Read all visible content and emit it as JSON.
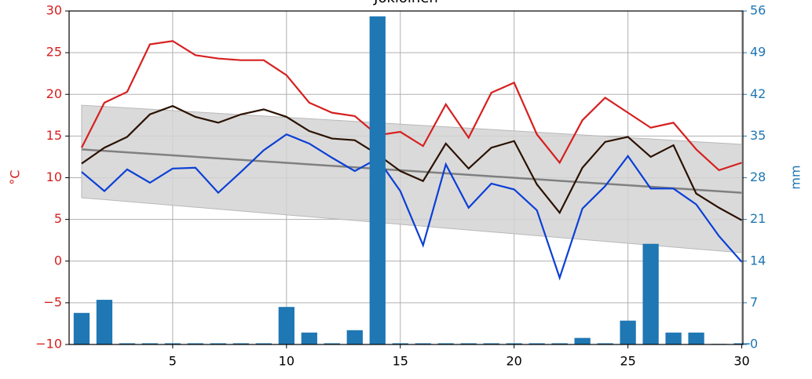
{
  "chart_data": {
    "type": "combo",
    "title": "Jokioinen",
    "y_label": "°C",
    "y2_label": "mm",
    "x": [
      1,
      2,
      3,
      4,
      5,
      6,
      7,
      8,
      9,
      10,
      11,
      12,
      13,
      14,
      15,
      16,
      17,
      18,
      19,
      20,
      21,
      22,
      23,
      24,
      25,
      26,
      27,
      28,
      29,
      30
    ],
    "xlim": [
      0.45,
      30.05
    ],
    "xticks": [
      5,
      10,
      15,
      20,
      25,
      30
    ],
    "ylim": [
      -10,
      30
    ],
    "yticks": [
      {
        "value": -10,
        "label": "−10"
      },
      {
        "value": -5,
        "label": "−5"
      },
      0,
      5,
      10,
      15,
      20,
      25,
      30
    ],
    "y2lim": [
      0,
      56
    ],
    "y2ticks": [
      0,
      7,
      14,
      21,
      28,
      35,
      42,
      49,
      56
    ],
    "y_color": "#d62020",
    "y2_color": "#1f77b4",
    "grid": true,
    "normal_band": {
      "x": [
        1,
        30
      ],
      "mean": [
        13.4,
        8.2
      ],
      "upper": [
        18.7,
        14.0
      ],
      "lower": [
        7.6,
        1.0
      ],
      "color": "#808080",
      "fill": "#d3d3d3"
    },
    "series": [
      {
        "type": "line",
        "color": "#d62020",
        "values": [
          13.6,
          19.0,
          20.3,
          26.0,
          26.4,
          24.7,
          24.3,
          24.1,
          24.1,
          22.3,
          19.0,
          17.8,
          17.4,
          15.1,
          15.5,
          13.8,
          18.8,
          14.8,
          20.2,
          21.4,
          15.2,
          11.8,
          16.9,
          19.6,
          17.8,
          16.0,
          16.6,
          13.4,
          10.9,
          11.8
        ]
      },
      {
        "type": "line",
        "color": "#2b1100",
        "values": [
          11.7,
          13.6,
          14.9,
          17.6,
          18.6,
          17.3,
          16.6,
          17.6,
          18.2,
          17.3,
          15.6,
          14.7,
          14.5,
          12.8,
          10.8,
          9.6,
          14.1,
          11.1,
          13.6,
          14.4,
          9.2,
          5.8,
          11.2,
          14.3,
          14.9,
          12.5,
          13.9,
          8.1,
          6.4,
          4.9
        ]
      },
      {
        "type": "line",
        "color": "#0b3fd6",
        "values": [
          10.7,
          8.4,
          11.0,
          9.4,
          11.1,
          11.2,
          8.2,
          10.7,
          13.3,
          15.2,
          14.1,
          12.4,
          10.8,
          12.3,
          8.4,
          1.9,
          11.6,
          6.4,
          9.3,
          8.6,
          6.1,
          -2.0,
          6.3,
          9.0,
          12.6,
          8.7,
          8.7,
          6.8,
          3.0,
          -0.1
        ]
      },
      {
        "type": "bar",
        "axis": "y2",
        "color": "#1f77b4",
        "values": [
          5.3,
          7.5,
          0.2,
          0.2,
          0.2,
          0.2,
          0.2,
          0.2,
          0.2,
          6.3,
          2.0,
          0.2,
          2.4,
          55.1,
          0.2,
          0.2,
          0.2,
          0.2,
          0.2,
          0.2,
          0.2,
          0.2,
          1.1,
          0.2,
          4.0,
          16.9,
          2.0,
          2.0,
          0.1,
          0.2
        ]
      }
    ]
  }
}
